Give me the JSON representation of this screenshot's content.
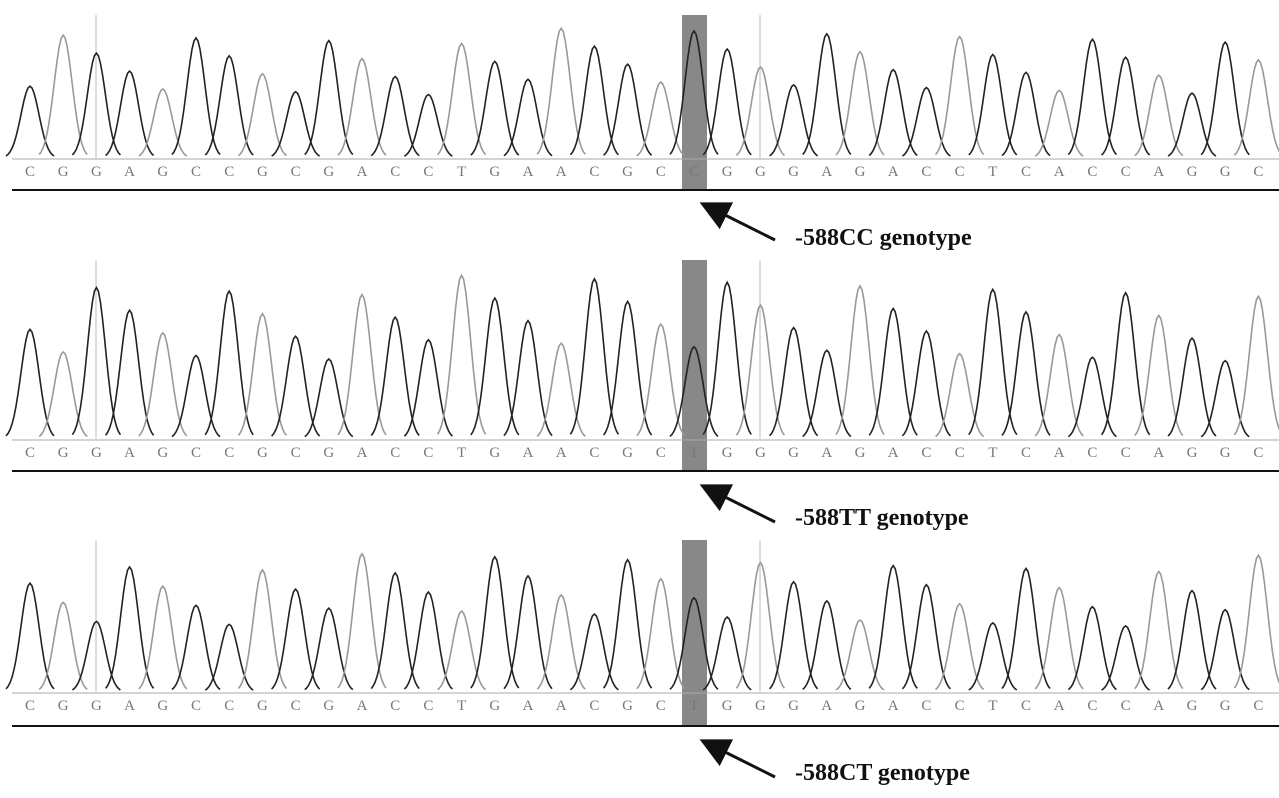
{
  "panels": [
    {
      "sequence": [
        "C",
        "G",
        "G",
        "A",
        "G",
        "C",
        "C",
        "G",
        "C",
        "G",
        "A",
        "C",
        "C",
        "T",
        "G",
        "A",
        "A",
        "C",
        "G",
        "C",
        "C",
        "G",
        "G",
        "G",
        "A",
        "G",
        "A",
        "C",
        "C",
        "T",
        "C",
        "A",
        "C",
        "C",
        "A",
        "G",
        "G",
        "C"
      ],
      "label": "-588CC genotype"
    },
    {
      "sequence": [
        "C",
        "G",
        "G",
        "A",
        "G",
        "C",
        "C",
        "G",
        "C",
        "G",
        "A",
        "C",
        "C",
        "T",
        "G",
        "A",
        "A",
        "C",
        "G",
        "C",
        "T",
        "G",
        "G",
        "G",
        "A",
        "G",
        "A",
        "C",
        "C",
        "T",
        "C",
        "A",
        "C",
        "C",
        "A",
        "G",
        "G",
        "C"
      ],
      "label": "-588TT genotype"
    },
    {
      "sequence": [
        "C",
        "G",
        "G",
        "A",
        "G",
        "C",
        "C",
        "G",
        "C",
        "G",
        "A",
        "C",
        "C",
        "T",
        "G",
        "A",
        "A",
        "C",
        "G",
        "C",
        "T",
        "G",
        "G",
        "G",
        "A",
        "G",
        "A",
        "C",
        "C",
        "T",
        "C",
        "A",
        "C",
        "C",
        "A",
        "G",
        "G",
        "C"
      ],
      "label": "-588CT genotype"
    }
  ]
}
